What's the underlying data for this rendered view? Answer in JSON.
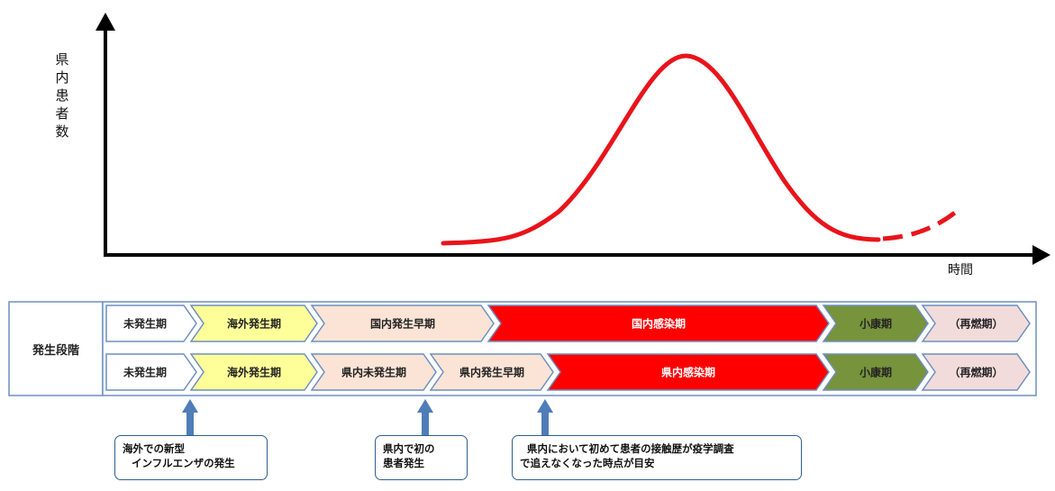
{
  "axes": {
    "y_label": "県内患者数",
    "x_label": "時間"
  },
  "stage_label": "発生段階",
  "rows": [
    {
      "phases": [
        {
          "label": "未発生期",
          "color": "#ffffff"
        },
        {
          "label": "海外発生期",
          "color": "#ffff99"
        },
        {
          "label": "国内発生早期",
          "color": "#fbe4d5"
        },
        {
          "label": "国内感染期",
          "color": "#ff0000"
        },
        {
          "label": "小康期",
          "color": "#77933c"
        },
        {
          "label": "（再燃期）",
          "color": "#f2dcdb"
        }
      ]
    },
    {
      "phases": [
        {
          "label": "未発生期",
          "color": "#ffffff"
        },
        {
          "label": "海外発生期",
          "color": "#ffff99"
        },
        {
          "label": "県内未発生期",
          "color": "#fbe4d5"
        },
        {
          "label": "県内発生早期",
          "color": "#fbe4d5"
        },
        {
          "label": "県内感染期",
          "color": "#ff0000"
        },
        {
          "label": "小康期",
          "color": "#77933c"
        },
        {
          "label": "（再燃期）",
          "color": "#f2dcdb"
        }
      ]
    }
  ],
  "callouts": [
    {
      "lines": [
        "海外での新型",
        "インフルエンザの発生"
      ]
    },
    {
      "lines": [
        "県内で初の",
        "患者発生"
      ]
    },
    {
      "lines": [
        "県内において初めて患者の接触歴が疫学調査",
        "で追えなくなった時点が目安"
      ]
    }
  ],
  "colors": {
    "axis": "#000000",
    "curve": "#e8141b",
    "phase_border": "#6d8fbf",
    "arrow": "#4f7db8"
  }
}
